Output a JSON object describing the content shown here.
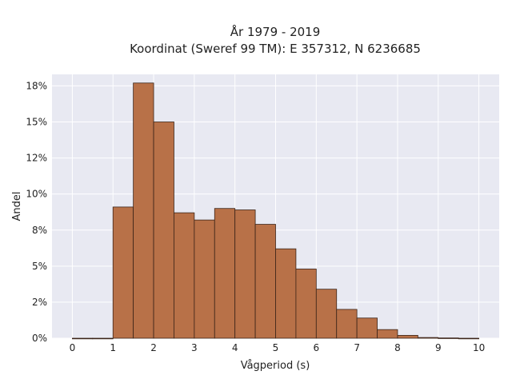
{
  "chart_data": {
    "type": "bar",
    "title": "År 1979 - 2019",
    "subtitle": "Koordinat (Sweref 99 TM): E 357312, N 6236685",
    "xlabel": "Vågperiod (s)",
    "ylabel": "Andel",
    "bin_width": 0.5,
    "bins": [
      {
        "x": 0.0,
        "value": 0.0
      },
      {
        "x": 0.5,
        "value": 0.0
      },
      {
        "x": 1.0,
        "value": 9.1
      },
      {
        "x": 1.5,
        "value": 17.7
      },
      {
        "x": 2.0,
        "value": 15.0
      },
      {
        "x": 2.5,
        "value": 8.7
      },
      {
        "x": 3.0,
        "value": 8.2
      },
      {
        "x": 3.5,
        "value": 9.0
      },
      {
        "x": 4.0,
        "value": 8.9
      },
      {
        "x": 4.5,
        "value": 7.9
      },
      {
        "x": 5.0,
        "value": 6.2
      },
      {
        "x": 5.5,
        "value": 4.8
      },
      {
        "x": 6.0,
        "value": 3.4
      },
      {
        "x": 6.5,
        "value": 2.0
      },
      {
        "x": 7.0,
        "value": 1.4
      },
      {
        "x": 7.5,
        "value": 0.6
      },
      {
        "x": 8.0,
        "value": 0.2
      },
      {
        "x": 8.5,
        "value": 0.05
      },
      {
        "x": 9.0,
        "value": 0.02
      },
      {
        "x": 9.5,
        "value": 0.0
      }
    ],
    "xlim": [
      -0.5,
      10.5
    ],
    "ylim": [
      0,
      18.3
    ],
    "xticks": [
      0,
      1,
      2,
      3,
      4,
      5,
      6,
      7,
      8,
      9,
      10
    ],
    "xtick_labels": [
      "0",
      "1",
      "2",
      "3",
      "4",
      "5",
      "6",
      "7",
      "8",
      "9",
      "10"
    ],
    "yticks": [
      0,
      2.5,
      5,
      7.5,
      10,
      12.5,
      15,
      17.5
    ],
    "ytick_labels": [
      "0%",
      "2%",
      "5%",
      "8%",
      "10%",
      "12%",
      "15%",
      "18%"
    ],
    "grid": true,
    "colors": {
      "bar_fill": "#b87148",
      "bar_edge": "#3b2418",
      "plot_bg": "#e8e9f2",
      "grid": "#ffffff"
    }
  }
}
